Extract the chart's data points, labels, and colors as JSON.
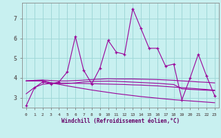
{
  "xlabel": "Windchill (Refroidissement éolien,°C)",
  "bg_color": "#c8f0f0",
  "grid_color": "#a0d8d8",
  "line_color": "#990099",
  "ylim": [
    2.5,
    7.8
  ],
  "xlim": [
    -0.5,
    23.5
  ],
  "x_ticks": [
    0,
    1,
    2,
    3,
    4,
    5,
    6,
    7,
    8,
    9,
    10,
    11,
    12,
    13,
    14,
    15,
    16,
    17,
    18,
    19,
    20,
    21,
    22,
    23
  ],
  "y_ticks": [
    3,
    4,
    5,
    6,
    7
  ],
  "series": [
    {
      "x": [
        0,
        1,
        2,
        3,
        4,
        5,
        6,
        7,
        8,
        9,
        10,
        11,
        12,
        13,
        14,
        15,
        16,
        17,
        18,
        19,
        20,
        21,
        22,
        23
      ],
      "y": [
        2.6,
        3.5,
        3.8,
        3.7,
        3.8,
        4.3,
        6.1,
        4.4,
        3.7,
        4.5,
        5.9,
        5.3,
        5.2,
        7.5,
        6.5,
        5.5,
        5.5,
        4.6,
        4.7,
        2.9,
        4.0,
        5.2,
        4.1,
        3.1
      ],
      "marker": "+"
    },
    {
      "x": [
        0,
        1,
        2,
        3,
        4,
        5,
        6,
        7,
        8,
        9,
        10,
        11,
        12,
        13,
        14,
        15,
        16,
        17,
        18,
        19,
        20,
        21,
        22,
        23
      ],
      "y": [
        3.85,
        3.88,
        3.9,
        3.87,
        3.85,
        3.85,
        3.87,
        3.89,
        3.92,
        3.94,
        3.96,
        3.95,
        3.95,
        3.95,
        3.94,
        3.93,
        3.92,
        3.9,
        3.88,
        3.85,
        3.83,
        3.8,
        3.78,
        3.75
      ],
      "marker": null
    },
    {
      "x": [
        0,
        1,
        2,
        3,
        4,
        5,
        6,
        7,
        8,
        9,
        10,
        11,
        12,
        13,
        14,
        15,
        16,
        17,
        18,
        19,
        20,
        21,
        22,
        23
      ],
      "y": [
        3.2,
        3.52,
        3.68,
        3.72,
        3.74,
        3.74,
        3.73,
        3.72,
        3.71,
        3.7,
        3.69,
        3.68,
        3.67,
        3.65,
        3.64,
        3.62,
        3.6,
        3.57,
        3.54,
        3.51,
        3.48,
        3.45,
        3.42,
        3.38
      ],
      "marker": null
    },
    {
      "x": [
        0,
        1,
        2,
        3,
        4,
        5,
        6,
        7,
        8,
        9,
        10,
        11,
        12,
        13,
        14,
        15,
        16,
        17,
        18,
        19,
        20,
        21,
        22,
        23
      ],
      "y": [
        3.85,
        3.85,
        3.85,
        3.75,
        3.68,
        3.6,
        3.53,
        3.46,
        3.39,
        3.33,
        3.27,
        3.21,
        3.16,
        3.11,
        3.06,
        3.02,
        2.98,
        2.94,
        2.9,
        2.87,
        2.84,
        2.81,
        2.78,
        2.75
      ],
      "marker": null
    },
    {
      "x": [
        0,
        1,
        2,
        3,
        4,
        5,
        6,
        7,
        8,
        9,
        10,
        11,
        12,
        13,
        14,
        15,
        16,
        17,
        18,
        19,
        20,
        21,
        22,
        23
      ],
      "y": [
        3.85,
        3.86,
        3.87,
        3.76,
        3.72,
        3.72,
        3.75,
        3.8,
        3.82,
        3.83,
        3.84,
        3.83,
        3.81,
        3.79,
        3.77,
        3.75,
        3.73,
        3.7,
        3.67,
        3.45,
        3.42,
        3.4,
        3.38,
        3.36
      ],
      "marker": null
    }
  ]
}
